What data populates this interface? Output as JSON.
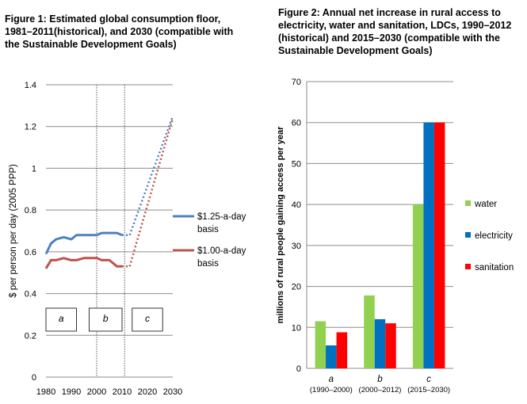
{
  "chart_data": [
    {
      "type": "line",
      "title": "Figure 1: Estimated global consumption floor,\n1981–2011(historical),  and 2030 (compatible with\nthe Sustainable Development Goals)",
      "ylabel": "$ per person per day (2005 PPP)",
      "xlabel": "",
      "xlim": [
        1980,
        2030
      ],
      "ylim": [
        0,
        1.4
      ],
      "x_ticks": [
        "1980",
        "1990",
        "2000",
        "2010",
        "2020",
        "2030"
      ],
      "x_tick_values": [
        1980,
        1990,
        2000,
        2010,
        2020,
        2030
      ],
      "y_ticks": [
        "0",
        "0.2",
        "0.4",
        "0.6",
        "0.8",
        "1",
        "1.2",
        "1.4"
      ],
      "y_tick_values": [
        0,
        0.2,
        0.4,
        0.6,
        0.8,
        1,
        1.2,
        1.4
      ],
      "grid": "horizontal",
      "legend_position": "right",
      "vertical_lines": [
        2000,
        2011
      ],
      "period_labels": [
        "a",
        "b",
        "c"
      ],
      "series": [
        {
          "name": "$1.25-a-day\nbasis",
          "color": "#4f81bd",
          "historical": [
            [
              1980,
              0.59
            ],
            [
              1982,
              0.64
            ],
            [
              1984,
              0.66
            ],
            [
              1987,
              0.67
            ],
            [
              1990,
              0.66
            ],
            [
              1992,
              0.68
            ],
            [
              1995,
              0.68
            ],
            [
              1998,
              0.68
            ],
            [
              2000,
              0.68
            ],
            [
              2002,
              0.69
            ],
            [
              2005,
              0.69
            ],
            [
              2008,
              0.69
            ],
            [
              2010,
              0.68
            ]
          ],
          "projection_flat": [
            [
              2010,
              0.68
            ],
            [
              2013,
              0.68
            ]
          ],
          "projection": [
            [
              2013,
              0.68
            ],
            [
              2030,
              1.25
            ]
          ]
        },
        {
          "name": "$1.00-a-day\nbasis",
          "color": "#c0504d",
          "historical": [
            [
              1980,
              0.52
            ],
            [
              1982,
              0.56
            ],
            [
              1984,
              0.56
            ],
            [
              1987,
              0.57
            ],
            [
              1990,
              0.56
            ],
            [
              1992,
              0.56
            ],
            [
              1995,
              0.57
            ],
            [
              1998,
              0.57
            ],
            [
              2000,
              0.57
            ],
            [
              2002,
              0.56
            ],
            [
              2005,
              0.56
            ],
            [
              2008,
              0.53
            ],
            [
              2010,
              0.53
            ]
          ],
          "projection_flat": [
            [
              2010,
              0.53
            ],
            [
              2013,
              0.53
            ]
          ],
          "projection": [
            [
              2013,
              0.53
            ],
            [
              2030,
              1.24
            ]
          ]
        }
      ]
    },
    {
      "type": "bar",
      "title": "Figure 2: Annual net increase in rural access  to\nelectricity, water and sanitation, LDCs, 1990–2012\n(historical) and 2015–2030  (compatible with the\nSustainable Development Goals)",
      "ylabel": "millions of rural people gaining access per year",
      "xlabel": "",
      "ylim": [
        0,
        70
      ],
      "y_ticks": [
        "0",
        "10",
        "20",
        "30",
        "40",
        "50",
        "60",
        "70"
      ],
      "y_tick_values": [
        0,
        10,
        20,
        30,
        40,
        50,
        60,
        70
      ],
      "grid": "horizontal",
      "legend_position": "right",
      "categories": [
        "a",
        "b",
        "c"
      ],
      "category_periods": [
        "(1990–2000)",
        "(2000–2012)",
        "(2015–2030)"
      ],
      "series": [
        {
          "name": "water",
          "color": "#92d050",
          "values": [
            11.5,
            17.8,
            40
          ]
        },
        {
          "name": "electricity",
          "color": "#0070c0",
          "values": [
            5.6,
            12,
            60
          ]
        },
        {
          "name": "sanitation",
          "color": "#ff0000",
          "values": [
            8.8,
            11,
            60
          ]
        }
      ]
    }
  ]
}
